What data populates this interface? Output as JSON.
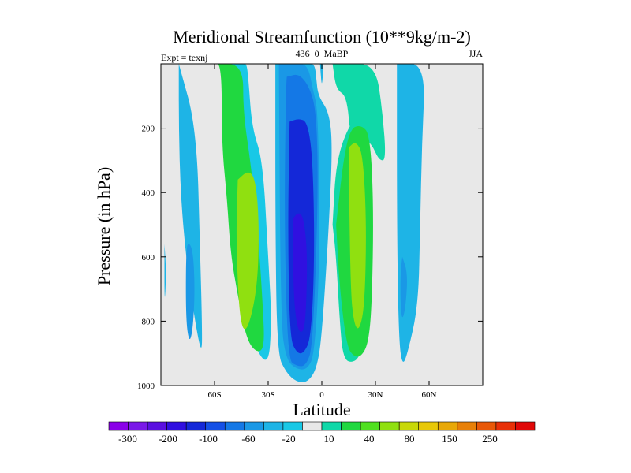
{
  "chart_data": {
    "type": "heatmap",
    "title": "Meridional Streamfunction (10**9kg/m-2)",
    "subtitle_left": "Expt = texnj",
    "subtitle_center": "436_0_MaBP",
    "subtitle_right": "JJA",
    "xlabel": "Latitude",
    "ylabel": "Pressure (in hPa)",
    "x_range": [
      -90,
      90
    ],
    "y_range": [
      0,
      1000
    ],
    "x_ticks": [
      -60,
      -30,
      0,
      30,
      60
    ],
    "x_tick_labels": [
      "60S",
      "30S",
      "0",
      "30N",
      "60N"
    ],
    "y_ticks": [
      200,
      400,
      600,
      800,
      1000
    ],
    "y_tick_labels": [
      "200",
      "400",
      "600",
      "800",
      "1000"
    ],
    "colorbar": {
      "colors": [
        "#8a00e8",
        "#7a18e8",
        "#5a10e0",
        "#3010e0",
        "#1428d8",
        "#1450e6",
        "#1478e6",
        "#1a98e6",
        "#1eb4e6",
        "#18c8e6",
        "#e8e8e8",
        "#10d8a8",
        "#20d840",
        "#50e020",
        "#90e010",
        "#c8d808",
        "#e8c808",
        "#e8a808",
        "#e88008",
        "#e85808",
        "#e83008",
        "#e00808"
      ],
      "labels": [
        "-300",
        "-200",
        "-100",
        "-60",
        "-20",
        "10",
        "40",
        "80",
        "150",
        "250"
      ]
    },
    "contours": [
      {
        "level": "-20",
        "color": "#1eb4e6",
        "x": [
          -80,
          -80,
          -79,
          -76,
          -71,
          -67,
          -67,
          -68,
          -70,
          -80
        ],
        "y": [
          0,
          200,
          400,
          600,
          800,
          910,
          800,
          600,
          200,
          0
        ]
      },
      {
        "level": "-60",
        "color": "#1a98e6",
        "x": [
          -76,
          -75,
          -72,
          -71,
          -72,
          -74,
          -76
        ],
        "y": [
          600,
          550,
          580,
          700,
          820,
          870,
          800
        ]
      },
      {
        "level": "-20",
        "color": "#1eb4e6",
        "x": [
          -88,
          -87,
          -88,
          -88
        ],
        "y": [
          560,
          650,
          760,
          560
        ]
      },
      {
        "level": "10",
        "color": "#18c8e6",
        "x": [
          -63,
          -54,
          -51,
          -50,
          -47,
          -44,
          -40,
          -30,
          -28,
          -30,
          -33,
          -39,
          -41,
          -42,
          -44,
          -54,
          -63
        ],
        "y": [
          0,
          0,
          100,
          250,
          400,
          600,
          850,
          950,
          800,
          600,
          300,
          200,
          50,
          0,
          0,
          0,
          0
        ]
      },
      {
        "level": "40",
        "color": "#20d840",
        "x": [
          -61,
          -56,
          -56,
          -53,
          -51,
          -47,
          -42,
          -36,
          -32,
          -33,
          -36,
          -40,
          -44,
          -44,
          -61
        ],
        "y": [
          0,
          0,
          250,
          420,
          590,
          720,
          860,
          900,
          880,
          750,
          500,
          300,
          150,
          0,
          0
        ]
      },
      {
        "level": "80",
        "color": "#90e010",
        "x": [
          -47,
          -41,
          -37,
          -35,
          -36,
          -42,
          -46,
          -48,
          -47
        ],
        "y": [
          360,
          330,
          360,
          500,
          700,
          840,
          800,
          550,
          360
        ]
      },
      {
        "level": "-20",
        "color": "#1eb4e6",
        "x": [
          -26,
          -16,
          -8,
          -4,
          -3,
          -2,
          4,
          6,
          4,
          0,
          -3,
          -8,
          -14,
          -20,
          -25,
          -26,
          -26
        ],
        "y": [
          0,
          0,
          0,
          0,
          50,
          100,
          150,
          250,
          500,
          850,
          950,
          990,
          990,
          960,
          900,
          500,
          0
        ]
      },
      {
        "level": "-60",
        "color": "#1a98e6",
        "x": [
          -24,
          -16,
          -8,
          -5,
          -2,
          -1,
          -4,
          -8,
          -14,
          -20,
          -23,
          -24
        ],
        "y": [
          0,
          0,
          0,
          80,
          150,
          600,
          900,
          950,
          950,
          920,
          800,
          0
        ]
      },
      {
        "level": "-100",
        "color": "#1478e6",
        "x": [
          -19,
          -13,
          -7,
          -3,
          -2,
          -5,
          -9,
          -14,
          -19,
          -21,
          -20
        ],
        "y": [
          40,
          30,
          70,
          150,
          400,
          880,
          940,
          940,
          920,
          500,
          40
        ]
      },
      {
        "level": "-200",
        "color": "#1428d8",
        "x": [
          -18,
          -13,
          -8,
          -5,
          -4,
          -6,
          -10,
          -14,
          -18,
          -19,
          -18
        ],
        "y": [
          180,
          170,
          180,
          300,
          600,
          850,
          900,
          900,
          850,
          500,
          180
        ]
      },
      {
        "level": "-300",
        "color": "#3010e0",
        "x": [
          -16,
          -13,
          -10,
          -8,
          -9,
          -11,
          -14,
          -16,
          -16
        ],
        "y": [
          480,
          460,
          480,
          600,
          800,
          840,
          820,
          700,
          480
        ]
      },
      {
        "level": "-20",
        "color": "#1eb4e6",
        "x": [
          -1,
          1,
          0,
          -1
        ],
        "y": [
          0,
          0,
          80,
          0
        ]
      },
      {
        "level": "10",
        "color": "#10d8a8",
        "x": [
          6,
          12,
          30,
          34,
          36,
          32,
          28,
          20,
          16,
          14,
          8,
          6
        ],
        "y": [
          0,
          0,
          0,
          150,
          300,
          300,
          250,
          210,
          230,
          100,
          80,
          0
        ]
      },
      {
        "level": "10",
        "color": "#10d8a8",
        "x": [
          6,
          8,
          16,
          22,
          26,
          28,
          26,
          22,
          18,
          12,
          10,
          8,
          6
        ],
        "y": [
          500,
          300,
          180,
          170,
          180,
          500,
          780,
          900,
          930,
          920,
          800,
          600,
          500
        ]
      },
      {
        "level": "40",
        "color": "#20d840",
        "x": [
          8,
          12,
          16,
          22,
          27,
          29,
          28,
          26,
          22,
          18,
          14,
          10,
          8
        ],
        "y": [
          500,
          300,
          200,
          190,
          220,
          450,
          750,
          870,
          910,
          910,
          880,
          700,
          500
        ]
      },
      {
        "level": "80",
        "color": "#90e010",
        "x": [
          15,
          19,
          23,
          25,
          24,
          21,
          18,
          16,
          15
        ],
        "y": [
          260,
          240,
          280,
          500,
          750,
          830,
          810,
          700,
          260
        ]
      },
      {
        "level": "-20",
        "color": "#1eb4e6",
        "x": [
          42,
          58,
          56,
          55,
          54,
          48,
          45,
          43,
          42,
          42
        ],
        "y": [
          0,
          0,
          250,
          500,
          750,
          900,
          940,
          850,
          500,
          0
        ]
      },
      {
        "level": "-60",
        "color": "#1a98e6",
        "x": [
          45,
          48,
          47,
          45,
          44,
          44,
          45
        ],
        "y": [
          600,
          650,
          750,
          800,
          750,
          650,
          600
        ]
      }
    ]
  }
}
